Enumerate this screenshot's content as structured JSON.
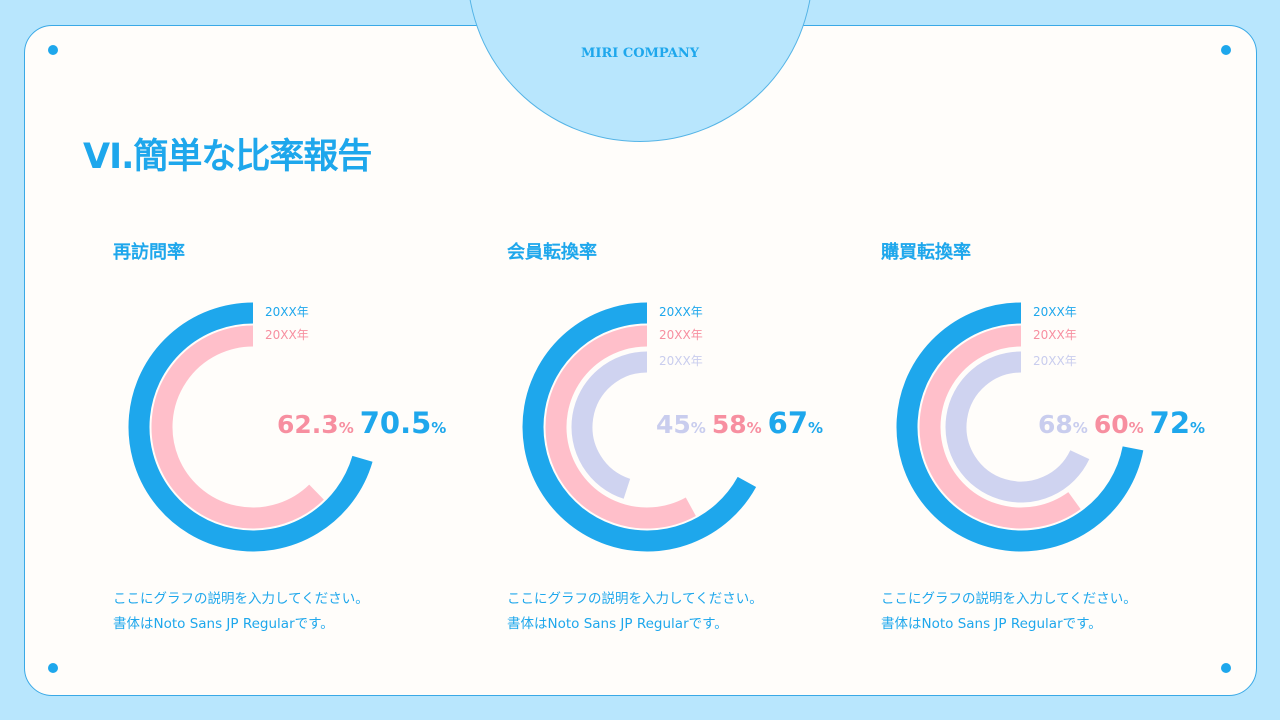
{
  "header": {
    "company": "MIRI COMPANY",
    "title": "VI.簡単な比率報告"
  },
  "colors": {
    "blue": "#1ea7ec",
    "pink": "#ffbfca",
    "lavender": "#cfd3f0",
    "pink_text": "#f78fa0",
    "lavender_text": "#c9cdee"
  },
  "charts": [
    {
      "title": "再訪問率",
      "rings": [
        {
          "label": "20XX年",
          "value": "70.5",
          "pct": 70.5,
          "color": "blue"
        },
        {
          "label": "20XX年",
          "value": "62.3",
          "pct": 62.3,
          "color": "pink"
        }
      ],
      "unit": "%",
      "desc1": "ここにグラフの説明を入力してください。",
      "desc2": "書体はNoto Sans JP Regularです。"
    },
    {
      "title": "会員転換率",
      "rings": [
        {
          "label": "20XX年",
          "value": "67",
          "pct": 67,
          "color": "blue"
        },
        {
          "label": "20XX年",
          "value": "58",
          "pct": 58,
          "color": "pink"
        },
        {
          "label": "20XX年",
          "value": "45",
          "pct": 45,
          "color": "lavender"
        }
      ],
      "unit": "%",
      "desc1": "ここにグラフの説明を入力してください。",
      "desc2": "書体はNoto Sans JP Regularです。"
    },
    {
      "title": "購買転換率",
      "rings": [
        {
          "label": "20XX年",
          "value": "72",
          "pct": 72,
          "color": "blue"
        },
        {
          "label": "20XX年",
          "value": "60",
          "pct": 60,
          "color": "pink"
        },
        {
          "label": "20XX年",
          "value": "68",
          "pct": 68,
          "color": "lavender"
        }
      ],
      "unit": "%",
      "desc1": "ここにグラフの説明を入力してください。",
      "desc2": "書体はNoto Sans JP Regularです。"
    }
  ]
}
